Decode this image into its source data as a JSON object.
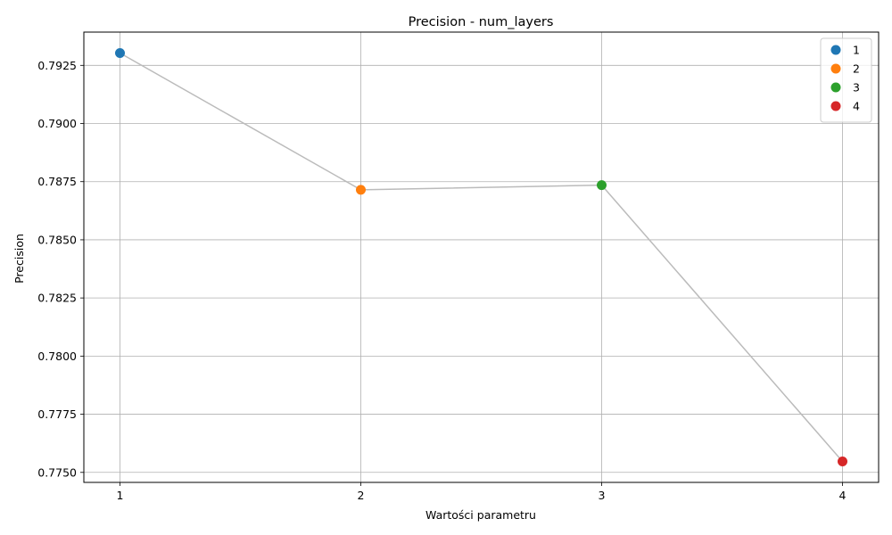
{
  "chart_data": {
    "type": "line",
    "title": "Precision - num_layers",
    "xlabel": "Wartości parametru",
    "ylabel": "Precision",
    "x": [
      1,
      2,
      3,
      4
    ],
    "x_tick_labels": [
      "1",
      "2",
      "3",
      "4"
    ],
    "values": [
      0.79303,
      0.78715,
      0.78735,
      0.77547
    ],
    "xlim": [
      0.85,
      4.15
    ],
    "ylim": [
      0.77457,
      0.79393
    ],
    "y_ticks": [
      0.775,
      0.7775,
      0.78,
      0.7825,
      0.785,
      0.7875,
      0.79,
      0.7925
    ],
    "y_tick_labels": [
      "0.7750",
      "0.7775",
      "0.7800",
      "0.7825",
      "0.7850",
      "0.7875",
      "0.7900",
      "0.7925"
    ],
    "grid": true,
    "line_color": "#bbbbbb",
    "point_colors": [
      "#1f77b4",
      "#ff7f0e",
      "#2ca02c",
      "#d62728"
    ],
    "legend": {
      "placement": "top-right",
      "entries": [
        "1",
        "2",
        "3",
        "4"
      ]
    }
  }
}
